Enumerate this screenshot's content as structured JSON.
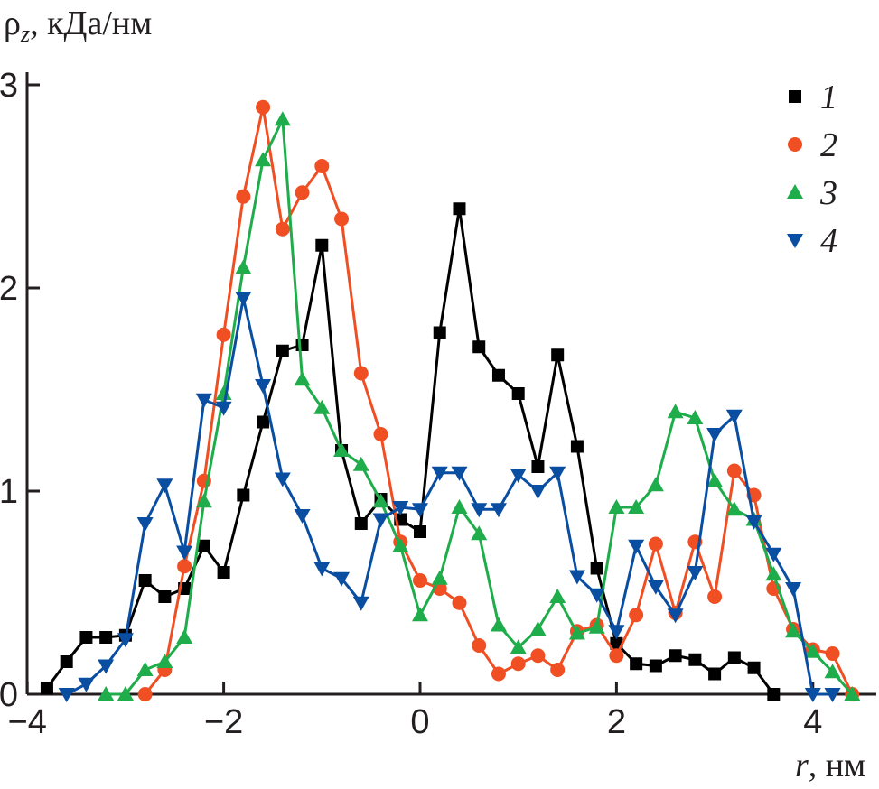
{
  "chart_data": {
    "type": "line",
    "title": "",
    "ylabel": "ρz, кДа/нм",
    "ylabel_parts": {
      "symbol": "ρ",
      "subscript": "z",
      "unit": ", кДа/нм"
    },
    "xlabel": "r, нм",
    "xlabel_parts": {
      "symbol": "r",
      "unit": ", нм"
    },
    "xlim": [
      -4,
      4.6
    ],
    "ylim": [
      0,
      3.05
    ],
    "xticks": [
      -4,
      -2,
      0,
      2,
      4
    ],
    "xtick_labels": [
      "−4",
      "−2",
      "0",
      "2",
      "4"
    ],
    "yticks": [
      0,
      1,
      2,
      3
    ],
    "ytick_labels": [
      "0",
      "1",
      "2",
      "3"
    ],
    "grid": false,
    "legend_position": "top-right",
    "series": [
      {
        "name": "1",
        "color": "#000000",
        "marker": "square",
        "x": [
          -3.8,
          -3.6,
          -3.4,
          -3.2,
          -3.0,
          -2.8,
          -2.6,
          -2.4,
          -2.2,
          -2.0,
          -1.8,
          -1.6,
          -1.4,
          -1.2,
          -1.0,
          -0.8,
          -0.6,
          -0.4,
          -0.2,
          0,
          0.2,
          0.4,
          0.6,
          0.8,
          1.0,
          1.2,
          1.4,
          1.6,
          1.8,
          2.0,
          2.2,
          2.4,
          2.6,
          2.8,
          3.0,
          3.2,
          3.4,
          3.6
        ],
        "y": [
          0.03,
          0.16,
          0.28,
          0.28,
          0.29,
          0.56,
          0.48,
          0.52,
          0.73,
          0.6,
          0.98,
          1.34,
          1.69,
          1.72,
          2.21,
          1.2,
          0.84,
          0.96,
          0.86,
          0.8,
          1.78,
          2.39,
          1.71,
          1.57,
          1.48,
          1.12,
          1.67,
          1.22,
          0.62,
          0.25,
          0.15,
          0.14,
          0.19,
          0.17,
          0.1,
          0.18,
          0.13,
          0.0
        ]
      },
      {
        "name": "2",
        "color": "#f04e23",
        "marker": "circle",
        "x": [
          -2.8,
          -2.6,
          -2.4,
          -2.2,
          -2.0,
          -1.8,
          -1.6,
          -1.4,
          -1.2,
          -1.0,
          -0.8,
          -0.6,
          -0.4,
          -0.2,
          0,
          0.2,
          0.4,
          0.6,
          0.8,
          1.0,
          1.2,
          1.4,
          1.6,
          1.8,
          2.0,
          2.2,
          2.4,
          2.6,
          2.8,
          3.0,
          3.2,
          3.4,
          3.6,
          3.8,
          4.0,
          4.2,
          4.4
        ],
        "y": [
          0.0,
          0.12,
          0.63,
          1.05,
          1.77,
          2.45,
          2.89,
          2.29,
          2.47,
          2.6,
          2.34,
          1.58,
          1.28,
          0.75,
          0.56,
          0.52,
          0.45,
          0.24,
          0.1,
          0.15,
          0.19,
          0.12,
          0.31,
          0.34,
          0.19,
          0.39,
          0.74,
          0.4,
          0.75,
          0.48,
          1.1,
          0.98,
          0.52,
          0.32,
          0.22,
          0.2,
          0.0
        ]
      },
      {
        "name": "3",
        "color": "#1fad4b",
        "marker": "triangle-up",
        "x": [
          -3.2,
          -3.0,
          -2.8,
          -2.6,
          -2.4,
          -2.2,
          -2.0,
          -1.8,
          -1.6,
          -1.4,
          -1.2,
          -1.0,
          -0.8,
          -0.6,
          -0.4,
          -0.2,
          0,
          0.2,
          0.4,
          0.6,
          0.8,
          1.0,
          1.2,
          1.4,
          1.6,
          1.8,
          2.0,
          2.2,
          2.4,
          2.6,
          2.8,
          3.0,
          3.2,
          3.4,
          3.6,
          3.8,
          4.0,
          4.2,
          4.4
        ],
        "y": [
          0.0,
          0.0,
          0.12,
          0.16,
          0.28,
          0.95,
          1.48,
          2.1,
          2.63,
          2.83,
          1.55,
          1.41,
          1.2,
          1.13,
          0.95,
          0.73,
          0.39,
          0.57,
          0.92,
          0.79,
          0.34,
          0.23,
          0.32,
          0.48,
          0.3,
          0.33,
          0.92,
          0.92,
          1.03,
          1.39,
          1.36,
          1.05,
          0.91,
          0.86,
          0.59,
          0.31,
          0.21,
          0.11,
          0.0
        ]
      },
      {
        "name": "4",
        "color": "#0a4ea2",
        "marker": "triangle-down",
        "x": [
          -3.6,
          -3.4,
          -3.2,
          -3.0,
          -2.8,
          -2.6,
          -2.4,
          -2.2,
          -2.0,
          -1.8,
          -1.6,
          -1.4,
          -1.2,
          -1.0,
          -0.8,
          -0.6,
          -0.4,
          -0.2,
          0,
          0.2,
          0.4,
          0.6,
          0.8,
          1.0,
          1.2,
          1.4,
          1.6,
          1.8,
          2.0,
          2.2,
          2.4,
          2.6,
          2.8,
          3.0,
          3.2,
          3.4,
          3.6,
          3.8,
          4.0,
          4.2
        ],
        "y": [
          0.0,
          0.05,
          0.14,
          0.27,
          0.84,
          1.03,
          0.7,
          1.45,
          1.41,
          1.95,
          1.52,
          1.06,
          0.88,
          0.62,
          0.57,
          0.45,
          0.86,
          0.92,
          0.91,
          1.09,
          1.09,
          0.91,
          0.91,
          1.08,
          1.0,
          1.09,
          0.58,
          0.49,
          0.31,
          0.73,
          0.53,
          0.39,
          0.6,
          1.28,
          1.37,
          0.85,
          0.69,
          0.52,
          0.0,
          0.0
        ]
      }
    ]
  }
}
